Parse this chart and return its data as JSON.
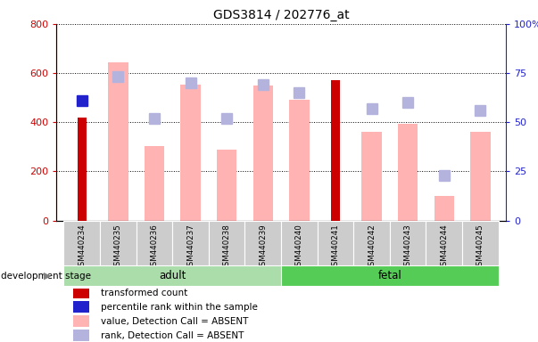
{
  "title": "GDS3814 / 202776_at",
  "categories": [
    "GSM440234",
    "GSM440235",
    "GSM440236",
    "GSM440237",
    "GSM440238",
    "GSM440239",
    "GSM440240",
    "GSM440241",
    "GSM440242",
    "GSM440243",
    "GSM440244",
    "GSM440245"
  ],
  "transformed_count": [
    420,
    null,
    null,
    null,
    null,
    null,
    null,
    570,
    null,
    null,
    null,
    null
  ],
  "percentile_rank_val": [
    61,
    null,
    null,
    null,
    null,
    null,
    null,
    null,
    null,
    null,
    null,
    null
  ],
  "absent_value": [
    null,
    645,
    305,
    555,
    290,
    550,
    490,
    null,
    360,
    395,
    100,
    360
  ],
  "absent_rank_pct": [
    null,
    73,
    52,
    70,
    52,
    69,
    65,
    null,
    57,
    60,
    23,
    56
  ],
  "ylim_left": [
    0,
    800
  ],
  "ylim_right": [
    0,
    100
  ],
  "yticks_left": [
    0,
    200,
    400,
    600,
    800
  ],
  "yticks_right": [
    0,
    25,
    50,
    75,
    100
  ],
  "adult_count": 6,
  "fetal_count": 6,
  "color_dark_red": "#cc0000",
  "color_dark_blue": "#2222cc",
  "color_light_pink": "#ffb3b3",
  "color_light_blue": "#b3b3dd",
  "color_adult_bg": "#aaddaa",
  "color_fetal_bg": "#55cc55",
  "color_axis_left": "#cc0000",
  "color_axis_right": "#2222cc",
  "legend_items": [
    {
      "label": "transformed count",
      "color": "#cc0000"
    },
    {
      "label": "percentile rank within the sample",
      "color": "#2222cc"
    },
    {
      "label": "value, Detection Call = ABSENT",
      "color": "#ffb3b3"
    },
    {
      "label": "rank, Detection Call = ABSENT",
      "color": "#b3b3dd"
    }
  ]
}
